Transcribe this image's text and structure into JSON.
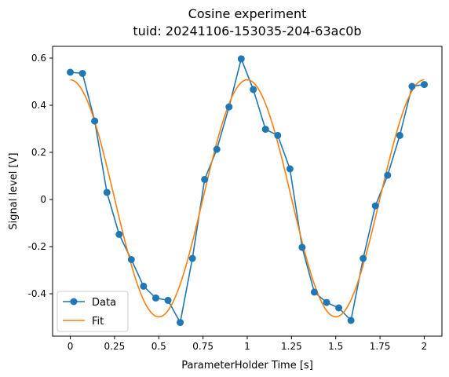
{
  "chart_data": {
    "type": "line",
    "title": "Cosine experiment",
    "subtitle": "tuid: 20241106-153035-204-63ac0b",
    "xlabel": "ParameterHolder Time [s]",
    "ylabel": "Signal level [V]",
    "xlim": [
      -0.1,
      2.1
    ],
    "ylim": [
      -0.58,
      0.65
    ],
    "xticks": [
      0,
      0.25,
      0.5,
      0.75,
      1,
      1.25,
      1.5,
      1.75,
      2
    ],
    "xtick_labels": [
      "0",
      "0.25",
      "0.5",
      "0.75",
      "1",
      "1.25",
      "1.5",
      "1.75",
      "2"
    ],
    "yticks": [
      0.6,
      0.4,
      0.2,
      0,
      -0.2,
      -0.4
    ],
    "ytick_labels": [
      "0.6",
      "0.4",
      "0.2",
      "0",
      "-0.2",
      "-0.4"
    ],
    "grid": false,
    "legend_position": "lower-left",
    "series": [
      {
        "name": "Data",
        "color": "#1f77b4",
        "marker": "circle",
        "x": [
          0,
          0.069,
          0.138,
          0.207,
          0.276,
          0.345,
          0.414,
          0.483,
          0.552,
          0.621,
          0.69,
          0.759,
          0.828,
          0.897,
          0.966,
          1.034,
          1.103,
          1.172,
          1.241,
          1.31,
          1.379,
          1.448,
          1.517,
          1.586,
          1.655,
          1.724,
          1.793,
          1.862,
          1.931,
          2.0
        ],
        "y": [
          0.54,
          0.535,
          0.333,
          0.03,
          -0.148,
          -0.255,
          -0.368,
          -0.418,
          -0.428,
          -0.522,
          -0.25,
          0.085,
          0.213,
          0.393,
          0.597,
          0.467,
          0.298,
          0.272,
          0.13,
          -0.203,
          -0.393,
          -0.437,
          -0.46,
          -0.513,
          -0.25,
          -0.027,
          0.103,
          0.272,
          0.48,
          0.488
        ]
      },
      {
        "name": "Fit",
        "color": "#ff7f0e",
        "function": {
          "form": "A*cos(2*pi*f*t) + c",
          "A": 0.503,
          "f": 1.0,
          "c": 0.005,
          "t_range": [
            0,
            2
          ]
        }
      }
    ]
  }
}
